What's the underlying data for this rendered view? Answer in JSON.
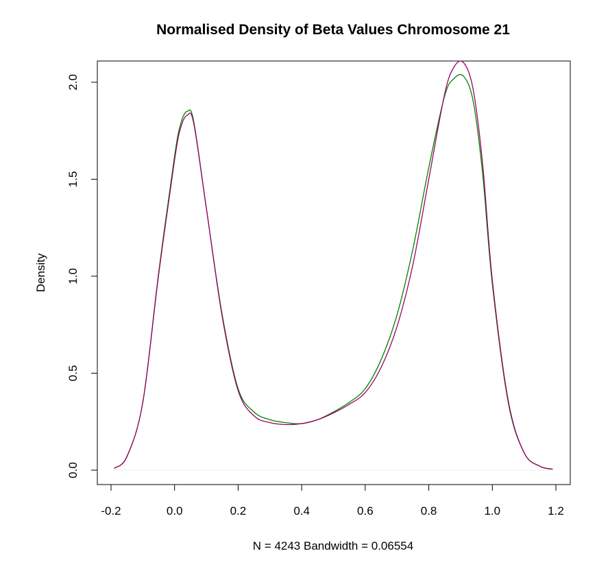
{
  "chart_data": {
    "type": "line",
    "title": "Normalised Density of Beta Values Chromosome 21",
    "xlabel": "N = 4243   Bandwidth = 0.06554",
    "ylabel": "Density",
    "xlim": [
      -0.2,
      1.2
    ],
    "ylim": [
      0.0,
      2.0
    ],
    "x_ticks": [
      "-0.2",
      "0.0",
      "0.2",
      "0.4",
      "0.6",
      "0.8",
      "1.0",
      "1.2"
    ],
    "y_ticks": [
      "0.0",
      "0.5",
      "1.0",
      "1.5",
      "2.0"
    ],
    "grid": false,
    "legend": "none",
    "series": [
      {
        "color": "#008000",
        "x": [
          -0.19,
          -0.15,
          -0.1,
          -0.05,
          0.0,
          0.02,
          0.04,
          0.06,
          0.1,
          0.15,
          0.2,
          0.25,
          0.3,
          0.35,
          0.4,
          0.45,
          0.5,
          0.55,
          0.6,
          0.65,
          0.7,
          0.75,
          0.8,
          0.85,
          0.88,
          0.91,
          0.94,
          0.97,
          1.0,
          1.05,
          1.1,
          1.15,
          1.19
        ],
        "y": [
          0.01,
          0.07,
          0.35,
          1.02,
          1.62,
          1.79,
          1.85,
          1.8,
          1.35,
          0.8,
          0.42,
          0.3,
          0.26,
          0.245,
          0.24,
          0.26,
          0.3,
          0.35,
          0.42,
          0.57,
          0.8,
          1.14,
          1.56,
          1.93,
          2.02,
          2.03,
          1.9,
          1.52,
          0.96,
          0.35,
          0.09,
          0.02,
          0.005
        ]
      },
      {
        "color": "#990066",
        "x": [
          -0.19,
          -0.15,
          -0.1,
          -0.05,
          0.0,
          0.02,
          0.04,
          0.06,
          0.1,
          0.15,
          0.2,
          0.25,
          0.3,
          0.35,
          0.4,
          0.45,
          0.5,
          0.55,
          0.6,
          0.65,
          0.7,
          0.75,
          0.8,
          0.85,
          0.88,
          0.91,
          0.94,
          0.97,
          1.0,
          1.05,
          1.1,
          1.15,
          1.19
        ],
        "y": [
          0.01,
          0.07,
          0.35,
          1.01,
          1.6,
          1.77,
          1.83,
          1.79,
          1.35,
          0.79,
          0.41,
          0.28,
          0.245,
          0.235,
          0.24,
          0.26,
          0.295,
          0.34,
          0.4,
          0.53,
          0.74,
          1.06,
          1.5,
          1.94,
          2.08,
          2.1,
          1.96,
          1.57,
          0.98,
          0.36,
          0.09,
          0.02,
          0.005
        ]
      }
    ]
  }
}
